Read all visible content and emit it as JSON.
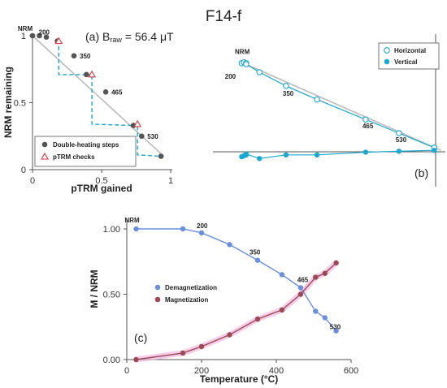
{
  "title": "F14-f",
  "chart_data": [
    {
      "panel": "(a)",
      "type": "scatter",
      "annotation": {
        "prefix": "(a) ",
        "b_raw": "B",
        "b_raw_sub": "raw",
        "value": " = 56.4 μT"
      },
      "xlabel": "pTRM gained",
      "ylabel": "NRM remaining",
      "xlim": [
        0,
        1
      ],
      "ylim": [
        0,
        1
      ],
      "xticks": [
        "0",
        "0.5",
        "1"
      ],
      "yticks": [
        "0",
        "0.5",
        "1"
      ],
      "legend": {
        "placement": "bottom-left",
        "entries": [
          "Double-heating steps",
          "pTRM checks"
        ]
      },
      "series": [
        {
          "name": "Double-heating steps",
          "x": [
            0.0,
            0.05,
            0.1,
            0.18,
            0.3,
            0.39,
            0.53,
            0.73,
            0.79,
            0.93
          ],
          "y": [
            1.0,
            1.0,
            0.99,
            0.96,
            0.85,
            0.71,
            0.58,
            0.33,
            0.25,
            0.1
          ]
        },
        {
          "name": "pTRM checks",
          "x": [
            0.19,
            0.43,
            0.76
          ],
          "y": [
            0.96,
            0.71,
            0.34
          ]
        }
      ],
      "check_lines": [
        [
          [
            0.18,
            0.96
          ],
          [
            0.19,
            0.96
          ],
          [
            0.19,
            0.71
          ],
          [
            0.39,
            0.71
          ]
        ],
        [
          [
            0.39,
            0.71
          ],
          [
            0.43,
            0.71
          ],
          [
            0.43,
            0.34
          ],
          [
            0.73,
            0.33
          ]
        ],
        [
          [
            0.73,
            0.33
          ],
          [
            0.76,
            0.34
          ],
          [
            0.76,
            0.11
          ],
          [
            0.93,
            0.1
          ]
        ]
      ],
      "fit_line": [
        [
          0.0,
          1.0
        ],
        [
          0.95,
          0.1
        ]
      ],
      "point_labels": [
        {
          "text": "NRM",
          "x": 0.0,
          "y": 1.0
        },
        {
          "text": "200",
          "x": 0.1,
          "y": 0.99
        },
        {
          "text": "350",
          "x": 0.3,
          "y": 0.85
        },
        {
          "text": "465",
          "x": 0.53,
          "y": 0.58
        },
        {
          "text": "530",
          "x": 0.79,
          "y": 0.25
        }
      ],
      "colors": {
        "steps": "#555555",
        "checks": "#d9363e",
        "check_lines": "#19a9d1",
        "fit": "#bbbbbb"
      }
    },
    {
      "panel": "(b)",
      "type": "scatter",
      "legend": {
        "placement": "top-right",
        "entries": [
          "Horizontal",
          "Vertical"
        ]
      },
      "xlim": [
        -1,
        0.05
      ],
      "ylim": [
        -0.18,
        1.0
      ],
      "series": [
        {
          "name": "Horizontal",
          "x": [
            -0.87,
            -0.86,
            -0.85,
            -0.85,
            -0.79,
            -0.67,
            -0.53,
            -0.31,
            -0.16,
            0.0
          ],
          "y": [
            0.93,
            0.94,
            0.93,
            0.92,
            0.83,
            0.68,
            0.53,
            0.31,
            0.16,
            0.0
          ]
        },
        {
          "name": "Vertical",
          "x": [
            -0.87,
            -0.86,
            -0.85,
            -0.85,
            -0.79,
            -0.67,
            -0.53,
            -0.31,
            -0.16,
            0.0
          ],
          "y": [
            -0.1,
            -0.09,
            -0.08,
            -0.07,
            -0.12,
            -0.08,
            -0.08,
            -0.05,
            -0.04,
            -0.03
          ]
        }
      ],
      "fit_line": [
        [
          -0.88,
          0.95
        ],
        [
          0.03,
          -0.03
        ]
      ],
      "point_labels": [
        {
          "text": "NRM",
          "x": -0.86,
          "y": 0.95
        },
        {
          "text": "200",
          "x": -0.86,
          "y": 0.85
        },
        {
          "text": "350",
          "x": -0.67,
          "y": 0.68
        },
        {
          "text": "465",
          "x": -0.31,
          "y": 0.31
        },
        {
          "text": "530",
          "x": -0.16,
          "y": 0.16
        }
      ],
      "annotation": "(b)",
      "colors": {
        "horizontal": "#19a9d1",
        "vertical": "#19a9d1",
        "fit": "#bbbbbb"
      }
    },
    {
      "panel": "(c)",
      "type": "line",
      "xlabel": "Temperature (°C)",
      "ylabel": "M / NRM",
      "xlim": [
        0,
        600
      ],
      "ylim": [
        0,
        1
      ],
      "xticks": [
        "0",
        "200",
        "400",
        "600"
      ],
      "yticks": [
        "0.00",
        "0.50",
        "1.00"
      ],
      "legend": {
        "placement": "left",
        "entries": [
          "Demagnetization",
          "Magnetization"
        ]
      },
      "series": [
        {
          "name": "Demagnetization",
          "x": [
            25,
            150,
            200,
            275,
            350,
            415,
            465,
            505,
            530,
            560
          ],
          "y": [
            1.0,
            1.0,
            0.97,
            0.88,
            0.76,
            0.65,
            0.55,
            0.37,
            0.32,
            0.22
          ]
        },
        {
          "name": "Magnetization",
          "x": [
            25,
            150,
            200,
            275,
            350,
            415,
            465,
            505,
            530,
            560
          ],
          "y": [
            0.0,
            0.05,
            0.1,
            0.19,
            0.31,
            0.38,
            0.5,
            0.63,
            0.66,
            0.74
          ]
        }
      ],
      "point_labels": [
        {
          "text": "NRM",
          "x": 25,
          "y": 1.0
        },
        {
          "text": "200",
          "x": 200,
          "y": 0.97
        },
        {
          "text": "350",
          "x": 350,
          "y": 0.76
        },
        {
          "text": "465",
          "x": 465,
          "y": 0.55
        },
        {
          "text": "530",
          "x": 530,
          "y": 0.32
        }
      ],
      "annotation": "(c)",
      "colors": {
        "demag": "#6b8fe0",
        "mag": "#9c4a56",
        "mag_glow": "#f2b8de"
      }
    }
  ]
}
